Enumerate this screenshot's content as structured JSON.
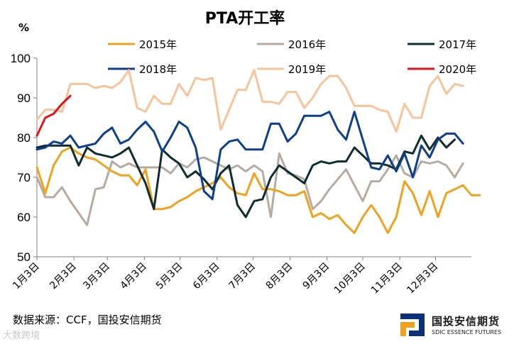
{
  "chart_data": {
    "type": "line",
    "title": "PTA开工率",
    "ylabel": "%",
    "xlabel": "",
    "ylim": [
      50,
      100
    ],
    "yticks": [
      50,
      60,
      70,
      80,
      90,
      100
    ],
    "xlim": [
      0,
      52
    ],
    "x_ticks": [
      {
        "label": "1月3日",
        "x": 0
      },
      {
        "label": "2月3日",
        "x": 4.43
      },
      {
        "label": "3月3日",
        "x": 8.43
      },
      {
        "label": "4月3日",
        "x": 12.86
      },
      {
        "label": "5月3日",
        "x": 17.14
      },
      {
        "label": "6月3日",
        "x": 21.57
      },
      {
        "label": "7月3日",
        "x": 25.86
      },
      {
        "label": "8月3日",
        "x": 30.29
      },
      {
        "label": "9月3日",
        "x": 34.71
      },
      {
        "label": "10月3日",
        "x": 39.0
      },
      {
        "label": "11月3日",
        "x": 43.43
      },
      {
        "label": "12月3日",
        "x": 47.71
      }
    ],
    "series": [
      {
        "name": "2015年",
        "color": "#f0a21e",
        "values": [
          72.5,
          66,
          73,
          76.5,
          77.5,
          76,
          75,
          74.5,
          73,
          71.5,
          70.5,
          70.5,
          68,
          72,
          62,
          62,
          62.5,
          64,
          65,
          66.5,
          67.5,
          68.5,
          70,
          67.5,
          66,
          65.5,
          71,
          67,
          67,
          66.5,
          65.5,
          65.5,
          66.5,
          60,
          61,
          59.5,
          60.5,
          58,
          56,
          60,
          63,
          60,
          56,
          60,
          69,
          66,
          60.5,
          66.5,
          60,
          66,
          67,
          68,
          65.5,
          65.5
        ]
      },
      {
        "name": "2016年",
        "color": "#b5aba2",
        "values": [
          70,
          65,
          65,
          67.5,
          64,
          61,
          58,
          67,
          67.5,
          74,
          72.5,
          73.5,
          72.5,
          72.5,
          72.5,
          72.5,
          71,
          73.5,
          72.5,
          74.5,
          75,
          74,
          73,
          72,
          73,
          71.5,
          73,
          71.5,
          60,
          76,
          71,
          70.5,
          69.5,
          62,
          64,
          67,
          69.5,
          72,
          68,
          64,
          69,
          69,
          72,
          75.5,
          71,
          70,
          74,
          73.5,
          74,
          73,
          70,
          73.5
        ]
      },
      {
        "name": "2017年",
        "color": "#0f2c2f",
        "values": [
          77.5,
          78,
          78,
          78,
          78,
          73,
          77.5,
          76,
          75.5,
          75,
          76,
          77.5,
          73,
          68.5,
          62,
          77,
          75,
          73.5,
          70,
          71.5,
          69.5,
          67,
          71,
          73,
          63,
          60,
          64,
          64.5,
          70,
          73,
          71.5,
          70,
          68.5,
          73,
          74,
          73.5,
          74,
          74,
          77.5,
          75.5,
          73.5,
          73.5,
          73,
          72,
          76.5,
          76,
          80.5,
          77,
          80,
          77.5,
          79.5
        ]
      },
      {
        "name": "2018年",
        "color": "#0e3f8e",
        "values": [
          77,
          77.5,
          79,
          78.5,
          80.5,
          77.5,
          78,
          78.5,
          81,
          82.5,
          78.5,
          79.5,
          82,
          84,
          81.5,
          76.5,
          80,
          84,
          82.5,
          77.5,
          66.5,
          64.5,
          77,
          79,
          79.5,
          77,
          77,
          77,
          83.5,
          83.5,
          79,
          81,
          85.5,
          85.5,
          85.5,
          86.5,
          82,
          79.5,
          86.5,
          79.5,
          72.5,
          72,
          75.5,
          71.5,
          76,
          70,
          78,
          75,
          79.5,
          81,
          81,
          78.5
        ]
      },
      {
        "name": "2019年",
        "color": "#f6c39a",
        "values": [
          84.5,
          87,
          87,
          86.5,
          93.5,
          93.5,
          93.5,
          92.5,
          93,
          92.5,
          94,
          97,
          87.5,
          86.5,
          90.5,
          88.5,
          88.5,
          93.5,
          90.5,
          95,
          94.5,
          95,
          82,
          87,
          92,
          92,
          97,
          89,
          89,
          88.5,
          91.5,
          91.5,
          87.5,
          90,
          93.5,
          95.5,
          95.5,
          92.5,
          88,
          88,
          88,
          87,
          86.5,
          81.5,
          88.5,
          85,
          85,
          93,
          95.5,
          91,
          93.5,
          93
        ]
      },
      {
        "name": "2020年",
        "color": "#e2141b",
        "values": [
          80.5,
          85,
          86,
          88.5,
          90.5
        ]
      }
    ]
  },
  "legend": {
    "row1": [
      "2015年",
      "2016年",
      "2017年"
    ],
    "row2": [
      "2018年",
      "2019年",
      "2020年"
    ]
  },
  "footer": {
    "source": "数据来源：CCF，国投安信期货",
    "watermark": "大数跨境",
    "logo_name": "国投安信期货",
    "logo_en": "SDIC ESSENCE FUTURES"
  }
}
